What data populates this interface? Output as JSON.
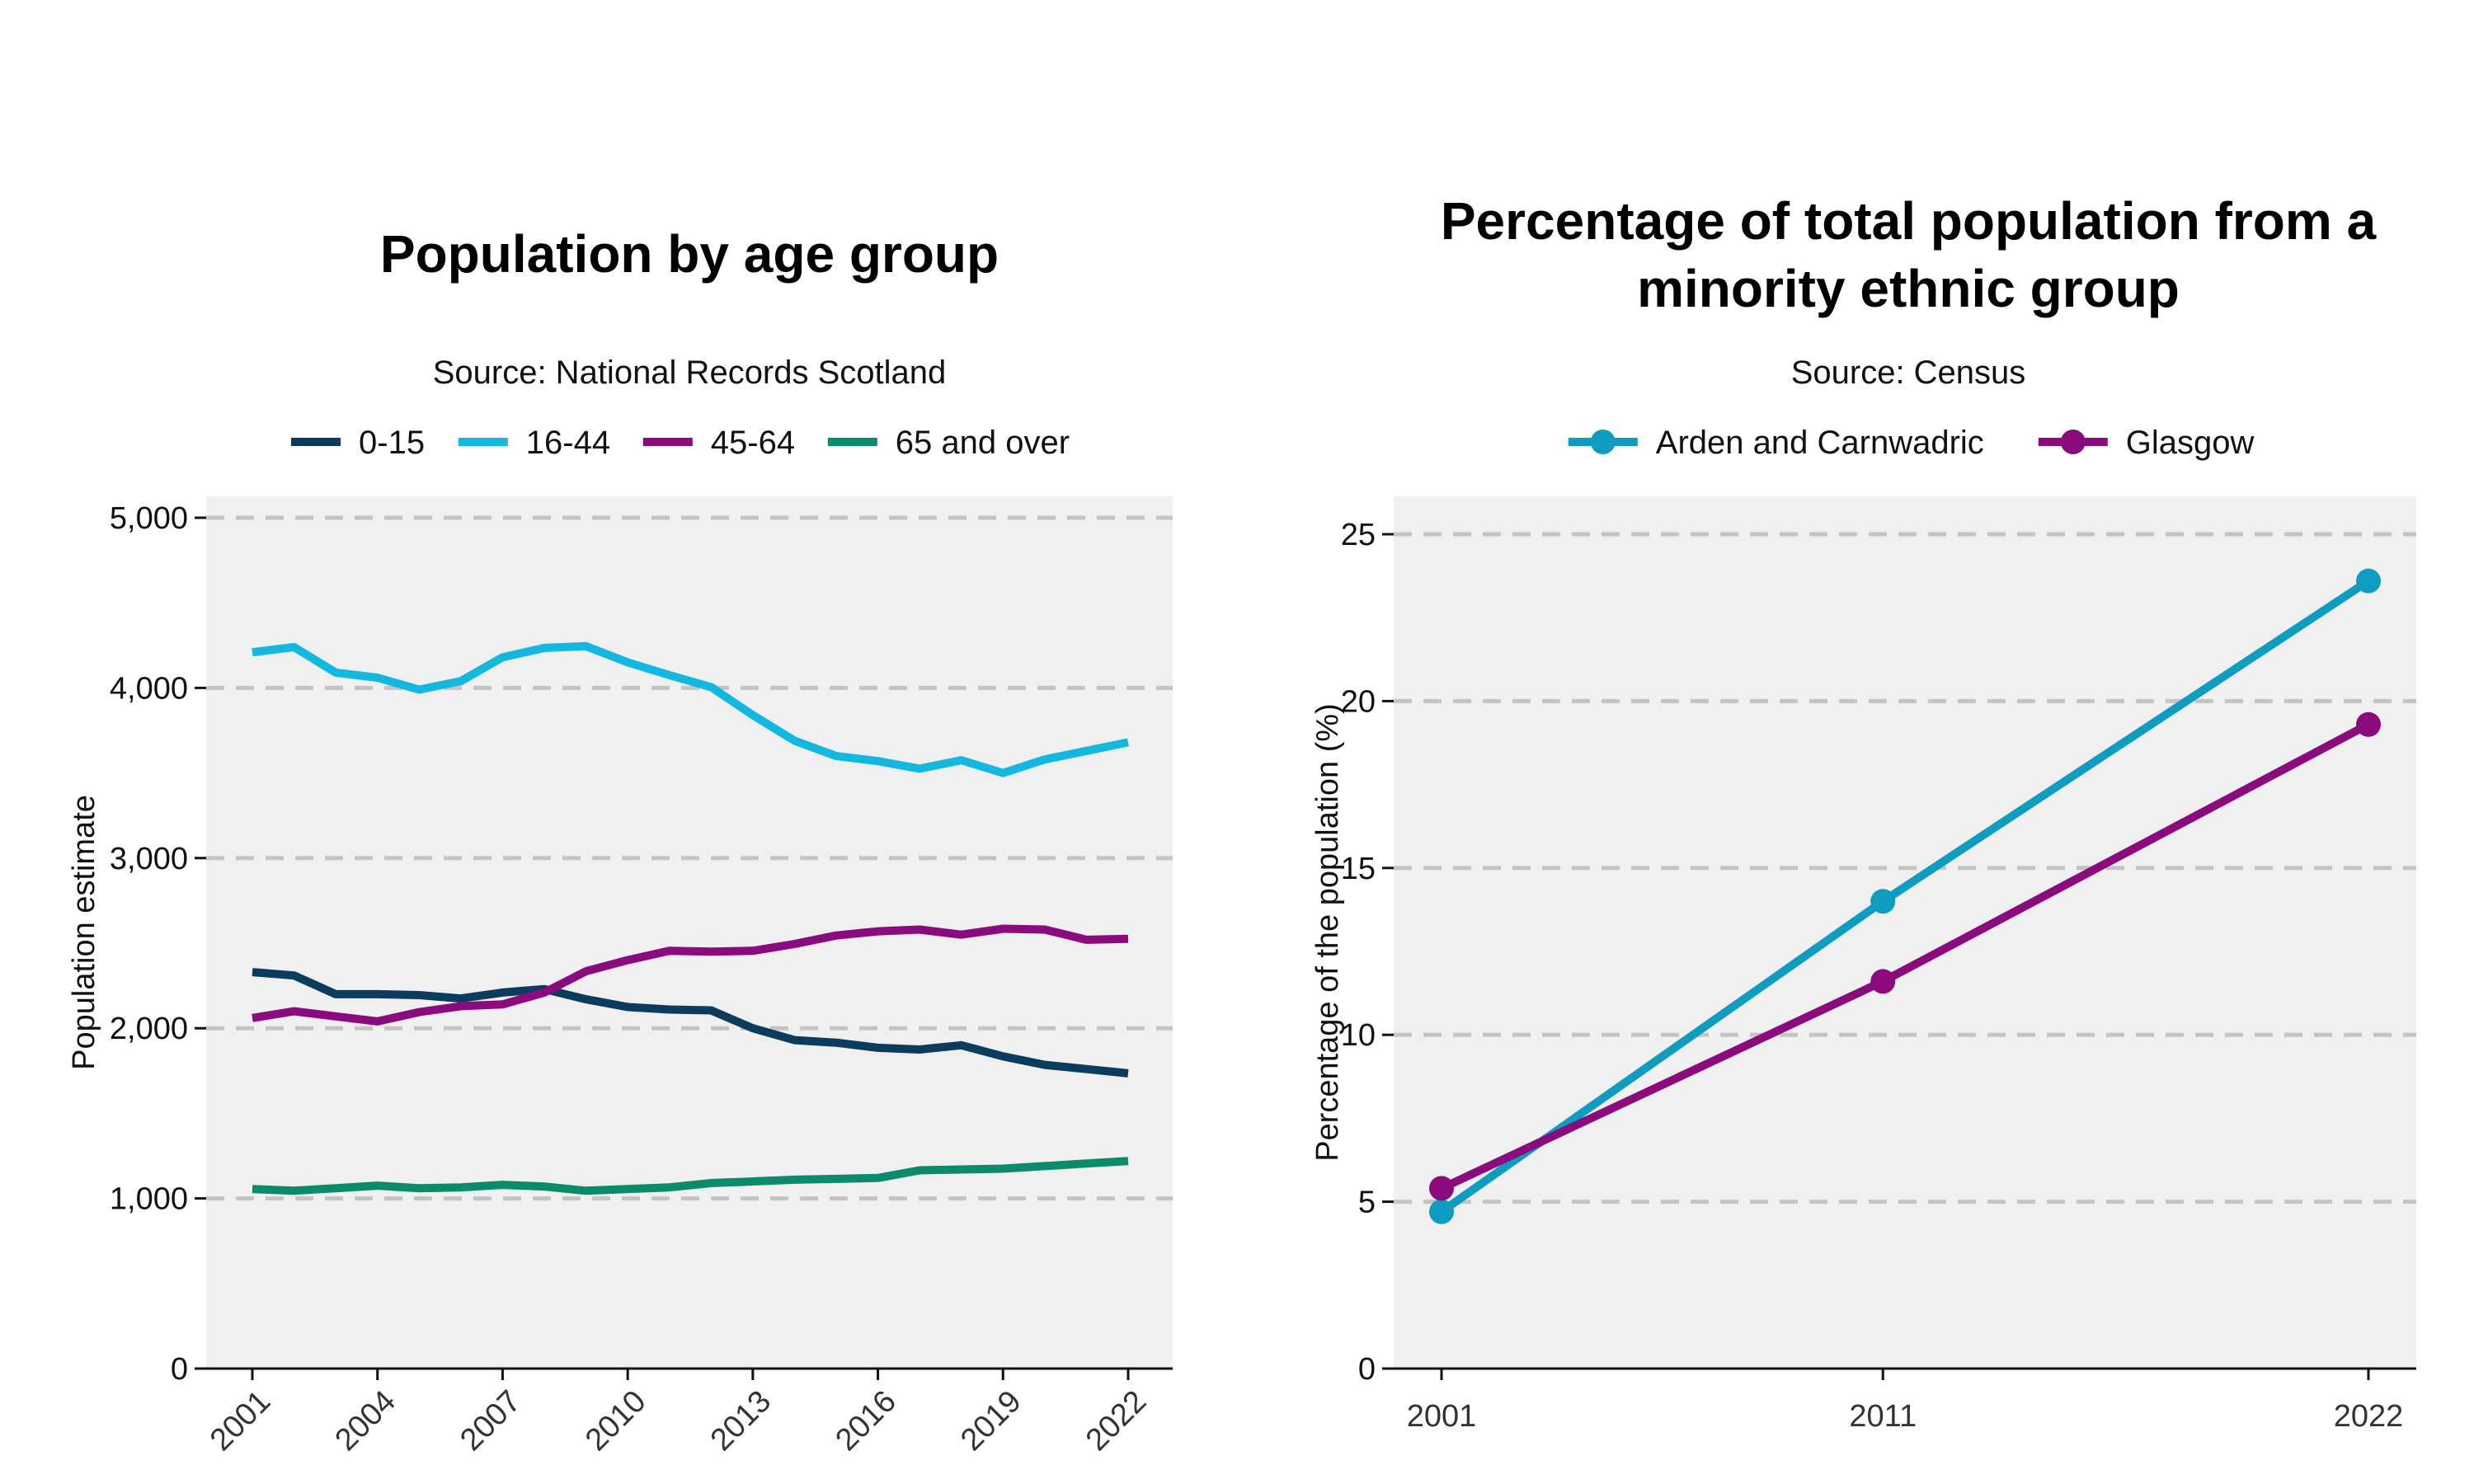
{
  "chart_data": [
    {
      "type": "line",
      "title": "Population by age group",
      "subtitle": "Source: National Records Scotland",
      "xlabel": "",
      "ylabel": "Population estimate",
      "ylim": [
        0,
        5000
      ],
      "yticks": [
        0,
        1000,
        2000,
        3000,
        4000,
        5000
      ],
      "ytick_labels": [
        "0",
        "1,000",
        "2,000",
        "3,000",
        "4,000",
        "5,000"
      ],
      "xlim": [
        2001,
        2022
      ],
      "xticks": [
        2001,
        2004,
        2007,
        2010,
        2013,
        2016,
        2019,
        2022
      ],
      "xtick_labels": [
        "2001",
        "2004",
        "2007",
        "2010",
        "2013",
        "2016",
        "2019",
        "2022"
      ],
      "grid": "horizontal dashed",
      "legend_position": "top",
      "x": [
        2001,
        2002,
        2003,
        2004,
        2005,
        2006,
        2007,
        2008,
        2009,
        2010,
        2011,
        2012,
        2013,
        2014,
        2015,
        2016,
        2017,
        2018,
        2019,
        2020,
        2021,
        2022
      ],
      "series": [
        {
          "name": "0-15",
          "color": "#0b3c5d",
          "values": [
            2330,
            2310,
            2200,
            2200,
            2195,
            2175,
            2210,
            2230,
            2170,
            2125,
            2110,
            2105,
            2000,
            1930,
            1915,
            1885,
            1875,
            1900,
            1835,
            1785,
            1760,
            1735
          ]
        },
        {
          "name": "16-44",
          "color": "#12b8e0",
          "values": [
            4210,
            4240,
            4090,
            4060,
            3990,
            4040,
            4180,
            4235,
            4245,
            4150,
            4075,
            4005,
            3840,
            3690,
            3600,
            3570,
            3525,
            3575,
            3500,
            3580,
            3630,
            3680
          ]
        },
        {
          "name": "45-64",
          "color": "#8b0a7e",
          "values": [
            2060,
            2100,
            2070,
            2040,
            2095,
            2130,
            2140,
            2210,
            2335,
            2400,
            2455,
            2450,
            2455,
            2495,
            2545,
            2570,
            2580,
            2550,
            2585,
            2580,
            2520,
            2525
          ]
        },
        {
          "name": "65 and over",
          "color": "#0a8c6a",
          "values": [
            1055,
            1045,
            1060,
            1075,
            1060,
            1065,
            1080,
            1070,
            1045,
            1055,
            1065,
            1090,
            1100,
            1110,
            1115,
            1120,
            1165,
            1170,
            1175,
            1190,
            1205,
            1220
          ]
        }
      ]
    },
    {
      "type": "line",
      "title": "Percentage of total population from a minority ethnic group",
      "title_lines": [
        "Percentage of total population from a",
        "minority ethnic group"
      ],
      "subtitle": "Source: Census",
      "xlabel": "",
      "ylabel": "Percentage of the population (%)",
      "ylim": [
        0,
        25
      ],
      "yticks": [
        0,
        5,
        10,
        15,
        20,
        25
      ],
      "ytick_labels": [
        "0",
        "5",
        "10",
        "15",
        "20",
        "25"
      ],
      "xticks": [
        2001,
        2011,
        2022
      ],
      "xtick_labels": [
        "2001",
        "2011",
        "2022"
      ],
      "grid": "horizontal dashed",
      "legend_position": "top",
      "x": [
        2001,
        2011,
        2022
      ],
      "series": [
        {
          "name": "Arden and Carnwadric",
          "color": "#0e9cc0",
          "values": [
            4.7,
            14.0,
            23.6
          ]
        },
        {
          "name": "Glasgow",
          "color": "#8b0a7e",
          "values": [
            5.4,
            11.6,
            19.3
          ]
        }
      ]
    }
  ]
}
